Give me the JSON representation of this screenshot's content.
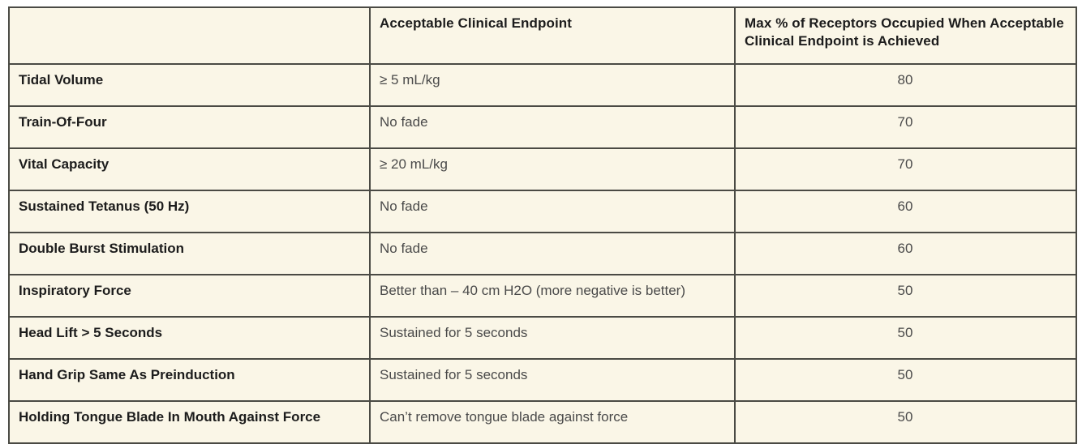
{
  "colors": {
    "table_background": "#FAF6E7",
    "border": "#4A4A44",
    "header_text": "#1C1C1C",
    "row_label_text": "#1C1C1C",
    "body_text": "#4A4A4A",
    "page_background": "#FFFFFF"
  },
  "table": {
    "columns": [
      {
        "label": ""
      },
      {
        "label": "Acceptable Clinical Endpoint"
      },
      {
        "label": "Max % of Receptors Occupied When Acceptable Clinical Endpoint is Achieved"
      }
    ],
    "rows": [
      {
        "label": "Tidal Volume",
        "endpoint": "≥ 5 mL/kg",
        "max_pct": "80"
      },
      {
        "label": "Train-Of-Four",
        "endpoint": "No fade",
        "max_pct": "70"
      },
      {
        "label": "Vital Capacity",
        "endpoint": "≥ 20 mL/kg",
        "max_pct": "70"
      },
      {
        "label": "Sustained Tetanus (50 Hz)",
        "endpoint": "No fade",
        "max_pct": "60"
      },
      {
        "label": "Double Burst Stimulation",
        "endpoint": "No fade",
        "max_pct": "60"
      },
      {
        "label": "Inspiratory Force",
        "endpoint": "Better than – 40 cm H2O (more negative is better)",
        "max_pct": "50"
      },
      {
        "label": "Head Lift > 5 Seconds",
        "endpoint": "Sustained for 5 seconds",
        "max_pct": "50"
      },
      {
        "label": "Hand Grip Same As Preinduction",
        "endpoint": "Sustained for 5 seconds",
        "max_pct": "50"
      },
      {
        "label": "Holding Tongue Blade In Mouth Against Force",
        "endpoint": "Can’t remove tongue blade against force",
        "max_pct": "50"
      }
    ]
  },
  "chart_data": {
    "type": "table",
    "title": "",
    "columns": [
      "",
      "Acceptable Clinical Endpoint",
      "Max % of Receptors Occupied When Acceptable Clinical Endpoint is Achieved"
    ],
    "rows": [
      [
        "Tidal Volume",
        "≥ 5 mL/kg",
        80
      ],
      [
        "Train-Of-Four",
        "No fade",
        70
      ],
      [
        "Vital Capacity",
        "≥ 20 mL/kg",
        70
      ],
      [
        "Sustained Tetanus (50 Hz)",
        "No fade",
        60
      ],
      [
        "Double Burst Stimulation",
        "No fade",
        60
      ],
      [
        "Inspiratory Force",
        "Better than – 40 cm H2O (more negative is better)",
        50
      ],
      [
        "Head Lift > 5 Seconds",
        "Sustained for 5 seconds",
        50
      ],
      [
        "Hand Grip Same As Preinduction",
        "Sustained for 5 seconds",
        50
      ],
      [
        "Holding Tongue Blade In Mouth Against Force",
        "Can’t remove tongue blade against force",
        50
      ]
    ]
  }
}
